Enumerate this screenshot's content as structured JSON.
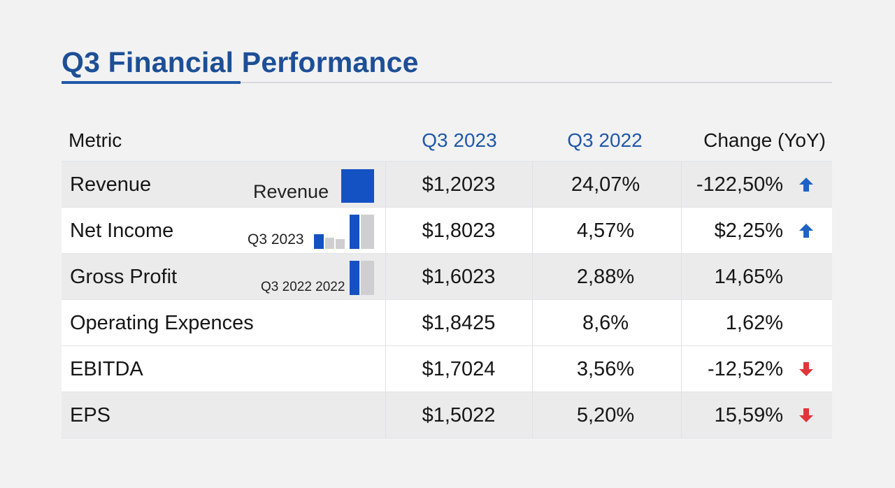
{
  "title": "Q3 Financial Performance",
  "colors": {
    "accent": "#1f58a8",
    "bar_blue": "#1452c4",
    "bar_gray": "#cfcfd2",
    "up_arrow": "#1f62c4",
    "down_arrow": "#e0363a"
  },
  "table": {
    "headers": {
      "metric": "Metric",
      "q3_2023": "Q3 2023",
      "q3_2022": "Q3 2022",
      "change": "Change (YoY)"
    },
    "rows": [
      {
        "metric": "Revenue",
        "q3_2023": "$1,2023",
        "q3_2022": "24,07%",
        "change": "-122,50%",
        "trend": "up",
        "inline_label": "Revenue"
      },
      {
        "metric": "Net Income",
        "q3_2023": "$1,8023",
        "q3_2022": "4,57%",
        "change": "$2,25%",
        "trend": "up",
        "inline_label": "Q3 2023"
      },
      {
        "metric": "Gross Profit",
        "q3_2023": "$1,6023",
        "q3_2022": "2,88%",
        "change": "14,65%",
        "trend": "none",
        "inline_label": "Q3 2022 2022"
      },
      {
        "metric": "Operating Expences",
        "q3_2023": "$1,8425",
        "q3_2022": "8,6%",
        "change": "1,62%",
        "trend": "none"
      },
      {
        "metric": "EBITDA",
        "q3_2023": "$1,7024",
        "q3_2022": "3,56%",
        "change": "-12,52%",
        "trend": "down"
      },
      {
        "metric": "EPS",
        "q3_2023": "$1,5022",
        "q3_2022": "5,20%",
        "change": "15,59%",
        "trend": "down"
      }
    ]
  }
}
